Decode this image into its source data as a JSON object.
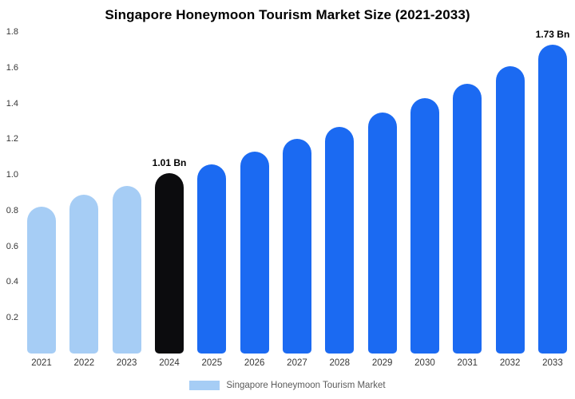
{
  "chart_data": {
    "type": "bar",
    "title": "Singapore Honeymoon Tourism Market Size (2021-2033)",
    "categories": [
      "2021",
      "2022",
      "2023",
      "2024",
      "2025",
      "2026",
      "2027",
      "2028",
      "2029",
      "2030",
      "2031",
      "2032",
      "2033"
    ],
    "values": [
      0.82,
      0.89,
      0.94,
      1.01,
      1.06,
      1.13,
      1.2,
      1.27,
      1.35,
      1.43,
      1.51,
      1.61,
      1.73
    ],
    "unit": "Bn",
    "bar_colors": [
      "#A6CDF5",
      "#A6CDF5",
      "#A6CDF5",
      "#0C0C0E",
      "#1B6AF2",
      "#1B6AF2",
      "#1B6AF2",
      "#1B6AF2",
      "#1B6AF2",
      "#1B6AF2",
      "#1B6AF2",
      "#1B6AF2",
      "#1B6AF2"
    ],
    "annotations": [
      {
        "category": "2024",
        "text": "1.01 Bn"
      },
      {
        "category": "2033",
        "text": "1.73 Bn"
      }
    ],
    "ylim": [
      0,
      1.8
    ],
    "ytick_labels": [
      "1.8",
      "1.6",
      "1.4",
      "1.2",
      "1.0",
      "0.8",
      "0.6",
      "0.4",
      "0.2"
    ],
    "grid": false,
    "legend_position": "bottom",
    "legend_label": "Singapore Honeymoon Tourism Market",
    "legend_color": "#A6CDF5",
    "background": "#FFFFFF"
  }
}
